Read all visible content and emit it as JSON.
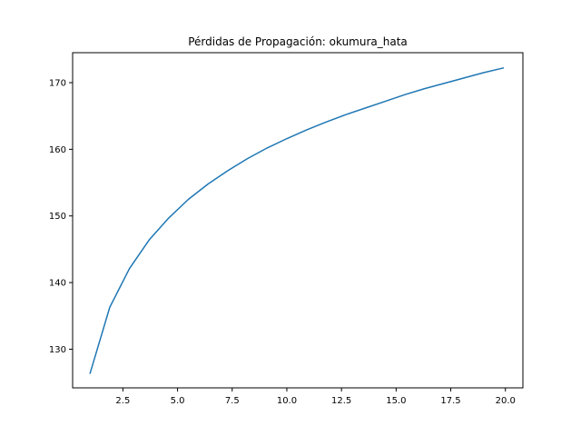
{
  "chart_data": {
    "type": "line",
    "title": "Pérdidas de Propagación: okumura_hata",
    "xlabel": "",
    "ylabel": "",
    "xlim": [
      0.2,
      20.8
    ],
    "ylim": [
      124.2,
      174.5
    ],
    "grid": false,
    "line_color": "#1f77b4",
    "x_ticks": [
      {
        "value": 2.5,
        "label": "2.5"
      },
      {
        "value": 5.0,
        "label": "5.0"
      },
      {
        "value": 7.5,
        "label": "7.5"
      },
      {
        "value": 10.0,
        "label": "10.0"
      },
      {
        "value": 12.5,
        "label": "12.5"
      },
      {
        "value": 15.0,
        "label": "15.0"
      },
      {
        "value": 17.5,
        "label": "17.5"
      },
      {
        "value": 20.0,
        "label": "20.0"
      }
    ],
    "y_ticks": [
      {
        "value": 130,
        "label": "130"
      },
      {
        "value": 140,
        "label": "140"
      },
      {
        "value": 150,
        "label": "150"
      },
      {
        "value": 160,
        "label": "160"
      },
      {
        "value": 170,
        "label": "170"
      }
    ],
    "series": [
      {
        "x": [
          1.0,
          1.9,
          2.8,
          3.7,
          4.6,
          5.5,
          6.4,
          7.3,
          8.2,
          9.1,
          10.0,
          10.9,
          11.8,
          12.7,
          13.6,
          14.5,
          15.4,
          16.3,
          17.2,
          18.1,
          19.0,
          19.9
        ],
        "y": [
          126.4,
          136.3,
          142.1,
          146.4,
          149.7,
          152.5,
          154.8,
          156.8,
          158.6,
          160.2,
          161.6,
          162.9,
          164.1,
          165.2,
          166.2,
          167.2,
          168.2,
          169.1,
          169.9,
          170.7,
          171.5,
          172.2
        ]
      }
    ]
  }
}
